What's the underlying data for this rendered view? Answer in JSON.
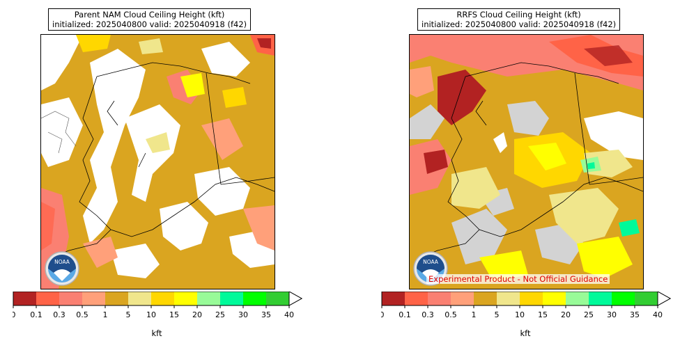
{
  "panels": [
    {
      "title_line1": "Parent NAM Cloud Ceiling Height (kft)",
      "title_line2": "initialized: 2025040800 valid: 2025040918 (f42)"
    },
    {
      "title_line1": "RRFS Cloud Ceiling Height (kft)",
      "title_line2": "initialized: 2025040800 valid: 2025040918 (f42)",
      "disclaimer": "Experimental Product - Not Official Guidance"
    }
  ],
  "logo_text": "NOAA",
  "colorbar": {
    "label": "kft",
    "ticks": [
      "0",
      "0.1",
      "0.3",
      "0.5",
      "1",
      "5",
      "10",
      "15",
      "20",
      "25",
      "30",
      "35",
      "40"
    ],
    "colors": [
      "#b22222",
      "#ff6347",
      "#fa8072",
      "#ffa07a",
      "#daa520",
      "#f0e68c",
      "#ffd700",
      "#ffff00",
      "#98fb98",
      "#00fa9a",
      "#00ff00",
      "#32cd32"
    ],
    "extend": "max"
  },
  "map_colors": {
    "clear": "#ffffff",
    "missing": "#d3d3d3",
    "border": "#000000"
  }
}
